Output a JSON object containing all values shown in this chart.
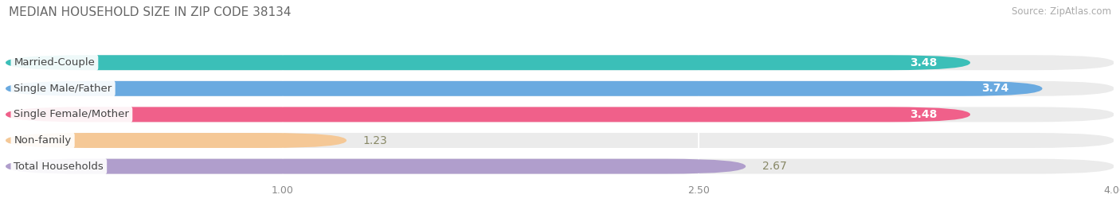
{
  "title": "MEDIAN HOUSEHOLD SIZE IN ZIP CODE 38134",
  "source": "Source: ZipAtlas.com",
  "categories": [
    "Married-Couple",
    "Single Male/Father",
    "Single Female/Mother",
    "Non-family",
    "Total Households"
  ],
  "values": [
    3.48,
    3.74,
    3.48,
    1.23,
    2.67
  ],
  "bar_colors": [
    "#3bbfb8",
    "#6aaae0",
    "#f0608a",
    "#f5c896",
    "#b09ecc"
  ],
  "label_text_colors": [
    "white",
    "white",
    "white",
    "#888855",
    "#555577"
  ],
  "xlim_max": 4.0,
  "xticks": [
    1.0,
    2.5,
    4.0
  ],
  "background_color": "#ffffff",
  "bar_bg_color": "#ebebeb",
  "title_fontsize": 11,
  "source_fontsize": 8.5,
  "val_label_fontsize": 10,
  "cat_fontsize": 9.5,
  "tick_fontsize": 9
}
